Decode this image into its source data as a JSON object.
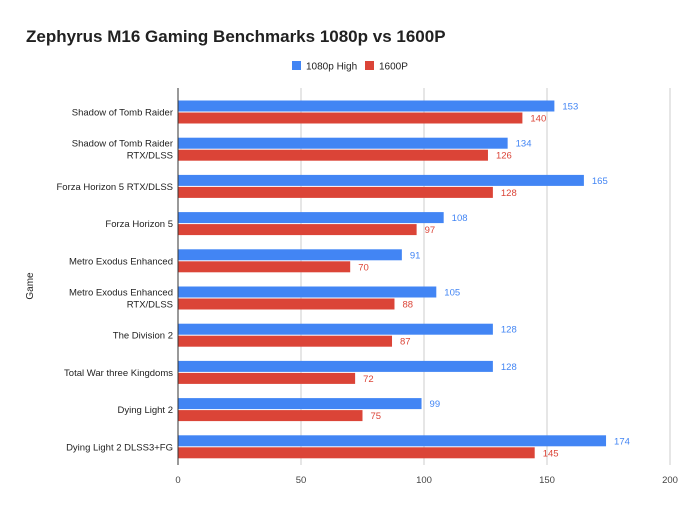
{
  "chart_data": {
    "type": "bar",
    "orientation": "horizontal",
    "title": "Zephyrus M16 Gaming Benchmarks 1080p vs 1600P",
    "xlabel": "",
    "ylabel": "Game",
    "xlim": [
      0,
      200
    ],
    "xticks": [
      0,
      50,
      100,
      150,
      200
    ],
    "grid": true,
    "legend_position": "top-center",
    "categories": [
      [
        "Shadow of Tomb Raider"
      ],
      [
        "Shadow of Tomb Raider",
        "RTX/DLSS"
      ],
      [
        "Forza Horizon 5 RTX/DLSS"
      ],
      [
        "Forza Horizon 5"
      ],
      [
        "Metro Exodus Enhanced"
      ],
      [
        "Metro Exodus Enhanced",
        "RTX/DLSS"
      ],
      [
        "The Division 2"
      ],
      [
        "Total War three Kingdoms"
      ],
      [
        "Dying Light 2"
      ],
      [
        "Dying Light 2 DLSS3+FG"
      ]
    ],
    "series": [
      {
        "name": "1080p High",
        "color": "#4285f4",
        "values": [
          153,
          134,
          165,
          108,
          91,
          105,
          128,
          128,
          99,
          174
        ]
      },
      {
        "name": "1600P",
        "color": "#db4437",
        "values": [
          140,
          126,
          128,
          97,
          70,
          88,
          87,
          72,
          75,
          145
        ]
      }
    ]
  }
}
